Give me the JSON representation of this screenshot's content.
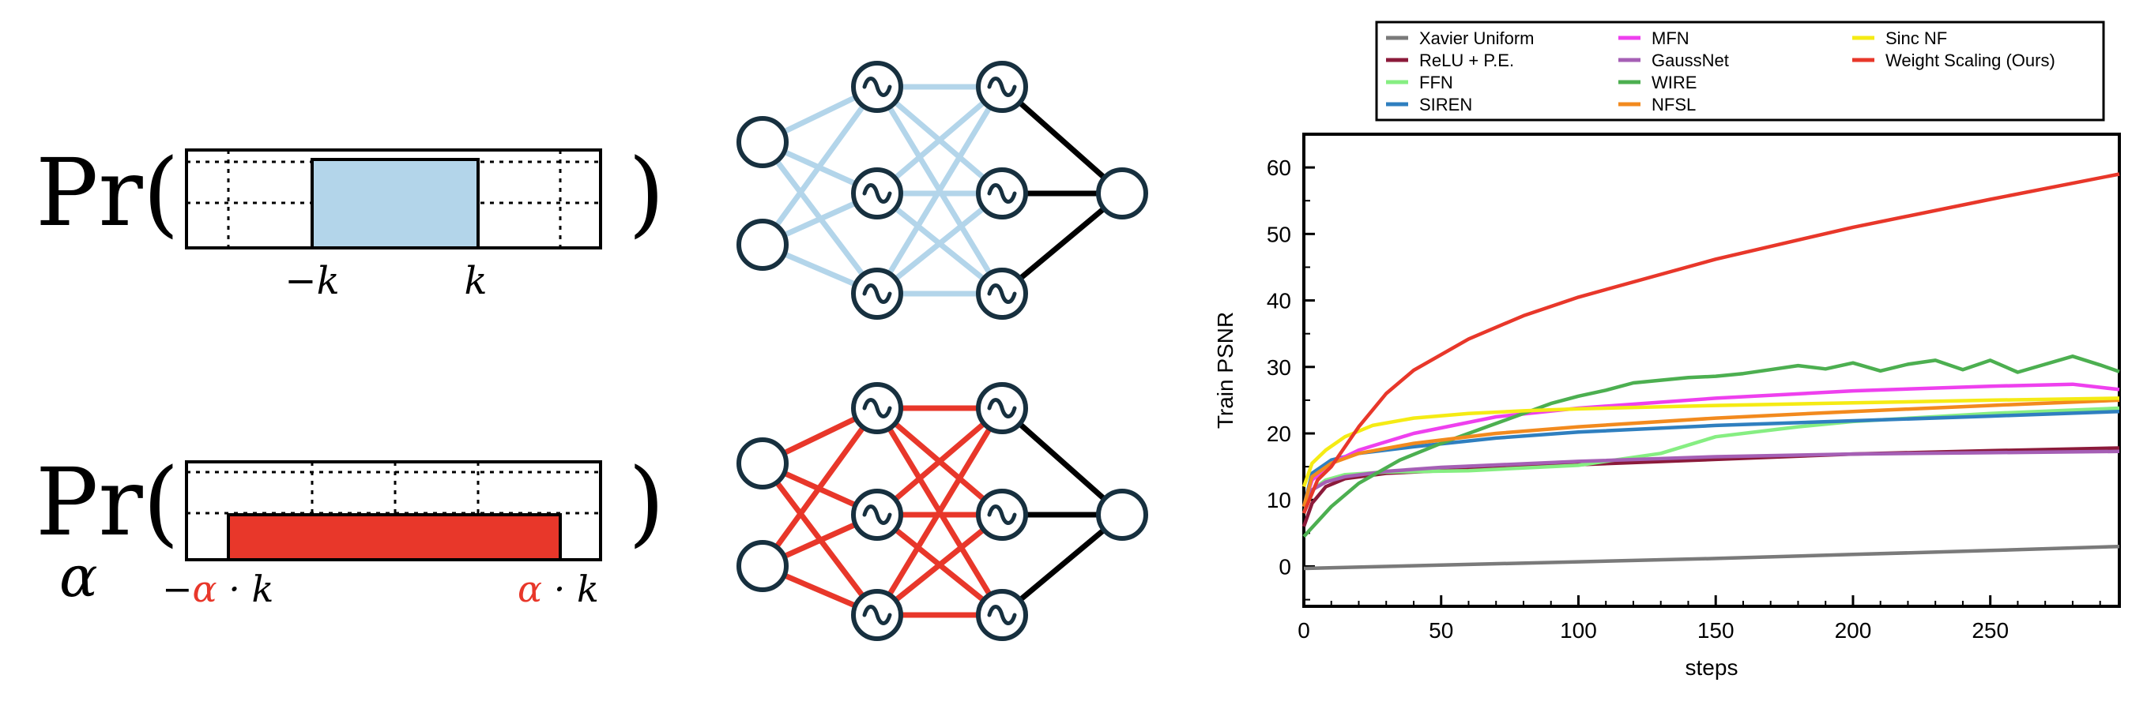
{
  "diagram": {
    "top": {
      "prefix": "Pr(",
      "suffix": ")",
      "range_neg_label": "−k",
      "range_pos_label": "k",
      "fill_color": "#b3d5ea",
      "edge_color": "#b3d5ea"
    },
    "bottom": {
      "prefix": "Pr(",
      "suffix": ")",
      "alpha_label": "α",
      "neg_prefix": "−",
      "alpha_symbol": "α",
      "dot_k": " · k",
      "fill_color": "#e8372a",
      "edge_color": "#e8372a"
    },
    "output_edge_color": "#000000",
    "node_stroke": "#17303f"
  },
  "chart_data": {
    "type": "line",
    "xlabel": "steps",
    "ylabel": "Train PSNR",
    "xlim": [
      0,
      297
    ],
    "ylim": [
      -6,
      65
    ],
    "xticks": [
      0,
      50,
      100,
      150,
      200,
      250
    ],
    "yticks": [
      0,
      10,
      20,
      30,
      40,
      50,
      60
    ],
    "legend_position": "top",
    "grid": false,
    "series": [
      {
        "name": "Xavier Uniform",
        "color": "#7a7a7a",
        "x": [
          0,
          50,
          100,
          150,
          200,
          250,
          297
        ],
        "y": [
          -0.3,
          0.2,
          0.7,
          1.2,
          1.8,
          2.4,
          3.0
        ]
      },
      {
        "name": "ReLU + P.E.",
        "color": "#8b1a3a",
        "x": [
          0,
          3,
          8,
          15,
          30,
          50,
          100,
          150,
          200,
          250,
          297
        ],
        "y": [
          6,
          9.5,
          12,
          13.2,
          14.0,
          14.4,
          15.3,
          16.1,
          16.9,
          17.4,
          17.8
        ]
      },
      {
        "name": "FFN",
        "color": "#86ee82",
        "x": [
          0,
          3,
          8,
          15,
          30,
          60,
          100,
          130,
          150,
          180,
          200,
          250,
          297
        ],
        "y": [
          8,
          11.5,
          13,
          13.8,
          14.2,
          14.4,
          15.2,
          17,
          19.5,
          21.0,
          21.8,
          23.0,
          23.8
        ]
      },
      {
        "name": "SIREN",
        "color": "#2f7fbf",
        "x": [
          0,
          3,
          10,
          20,
          40,
          70,
          100,
          150,
          200,
          250,
          297
        ],
        "y": [
          9,
          14,
          16,
          17,
          18,
          19.3,
          20.2,
          21.2,
          21.9,
          22.6,
          23.3
        ]
      },
      {
        "name": "MFN",
        "color": "#ee40ee",
        "x": [
          0,
          3,
          10,
          20,
          40,
          70,
          100,
          150,
          200,
          250,
          280,
          297
        ],
        "y": [
          9,
          13,
          15.5,
          17.5,
          20,
          22.5,
          23.8,
          25.3,
          26.4,
          27.1,
          27.4,
          26.6
        ]
      },
      {
        "name": "GaussNet",
        "color": "#a55fb5",
        "x": [
          0,
          3,
          8,
          15,
          30,
          50,
          100,
          150,
          200,
          250,
          297
        ],
        "y": [
          9,
          11.5,
          12.7,
          13.5,
          14.3,
          14.9,
          15.8,
          16.5,
          16.9,
          17.1,
          17.3
        ]
      },
      {
        "name": "WIRE",
        "color": "#4caf50",
        "x": [
          0,
          10,
          20,
          35,
          50,
          70,
          90,
          100,
          110,
          120,
          130,
          140,
          150,
          160,
          170,
          180,
          190,
          200,
          210,
          220,
          230,
          240,
          250,
          260,
          270,
          280,
          290,
          297
        ],
        "y": [
          4.5,
          9,
          12.5,
          16,
          18.5,
          21.5,
          24.5,
          25.6,
          26.5,
          27.6,
          28.0,
          28.4,
          28.6,
          29.0,
          29.6,
          30.2,
          29.7,
          30.6,
          29.4,
          30.4,
          31.0,
          29.6,
          31.0,
          29.2,
          30.4,
          31.6,
          30.3,
          29.3
        ]
      },
      {
        "name": "NFSL",
        "color": "#f28a1e",
        "x": [
          0,
          3,
          10,
          20,
          40,
          70,
          100,
          150,
          200,
          250,
          297
        ],
        "y": [
          9,
          13.5,
          15.5,
          17,
          18.5,
          20,
          21.0,
          22.3,
          23.3,
          24.2,
          25.0
        ]
      },
      {
        "name": "Sinc NF",
        "color": "#f5eb14",
        "x": [
          0,
          3,
          8,
          15,
          25,
          40,
          60,
          80,
          100,
          150,
          200,
          250,
          297
        ],
        "y": [
          12,
          15.5,
          17.5,
          19.5,
          21.2,
          22.3,
          23.0,
          23.4,
          23.7,
          24.2,
          24.6,
          25.0,
          25.3
        ]
      },
      {
        "name": "Weight Scaling (Ours)",
        "color": "#e8372a",
        "x": [
          0,
          5,
          10,
          15,
          20,
          30,
          40,
          60,
          80,
          100,
          150,
          200,
          250,
          297
        ],
        "y": [
          8,
          13,
          15,
          18,
          21,
          26,
          29.5,
          34.2,
          37.7,
          40.5,
          46.2,
          51.0,
          55.2,
          59.0
        ]
      }
    ]
  }
}
